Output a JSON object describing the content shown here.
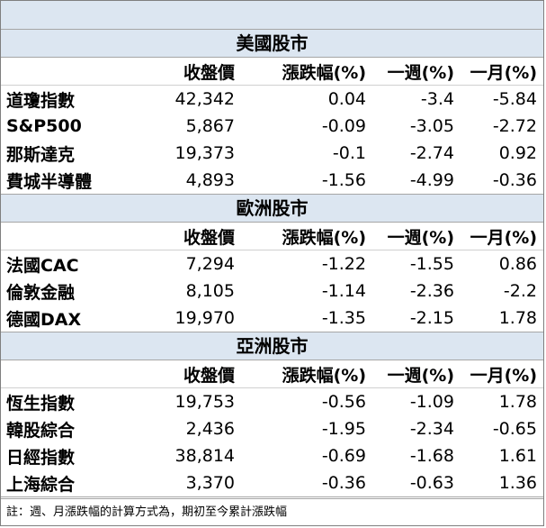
{
  "sections": [
    {
      "title": "美國股市",
      "headers": [
        "",
        "收盤價",
        "漲跌幅(%)",
        "一週(%)",
        "一月(%)"
      ],
      "rows": [
        [
          "道瓊指數",
          "42,342",
          "0.04",
          "-3.4",
          "-5.84"
        ],
        [
          "S&P500",
          "5,867",
          "-0.09",
          "-3.05",
          "-2.72"
        ],
        [
          "那斯達克",
          "19,373",
          "-0.1",
          "-2.74",
          "0.92"
        ],
        [
          "費城半導體",
          "4,893",
          "-1.56",
          "-4.99",
          "-0.36"
        ]
      ]
    },
    {
      "title": "歐洲股市",
      "headers": [
        "",
        "收盤價",
        "漲跌幅(%)",
        "一週(%)",
        "一月(%)"
      ],
      "rows": [
        [
          "法國CAC",
          "7,294",
          "-1.22",
          "-1.55",
          "0.86"
        ],
        [
          "倫敦金融",
          "8,105",
          "-1.14",
          "-2.36",
          "-2.2"
        ],
        [
          "德國DAX",
          "19,970",
          "-1.35",
          "-2.15",
          "1.78"
        ]
      ]
    },
    {
      "title": "亞洲股市",
      "headers": [
        "",
        "收盤價",
        "漲跌幅(%)",
        "一週(%)",
        "一月(%)"
      ],
      "rows": [
        [
          "恆生指數",
          "19,753",
          "-0.56",
          "-1.09",
          "1.78"
        ],
        [
          "韓股綜合",
          "2,436",
          "-1.95",
          "-2.34",
          "-0.65"
        ],
        [
          "日經指數",
          "38,814",
          "-0.69",
          "-1.68",
          "1.61"
        ],
        [
          "上海綜合",
          "3,370",
          "-0.36",
          "-0.63",
          "1.36"
        ]
      ]
    }
  ],
  "note": "註：週、月漲跌幅的計算方式為，期初至今累計漲跌幅",
  "colors": {
    "section_band": "#dce6f1",
    "border": "#a6a6a6"
  }
}
